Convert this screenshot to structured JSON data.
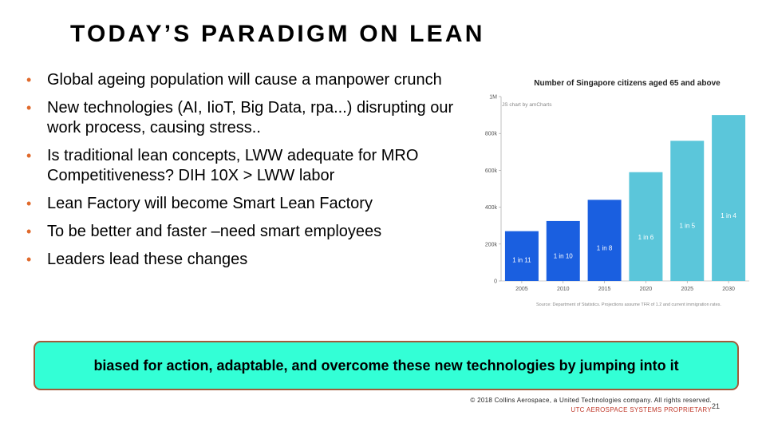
{
  "slide": {
    "title": "TODAY’S PARADIGM ON LEAN",
    "bullets": [
      "Global ageing population  will  cause a manpower crunch",
      "New technologies  (AI, IioT, Big Data, rpa...) disrupting  our work process, causing stress..",
      "Is traditional lean concepts, LWW adequate  for MRO Competitiveness?   DIH 10X > LWW labor",
      "Lean Factory will  become Smart Lean Factory",
      "To be better and faster –need smart employees",
      "Leaders lead these changes"
    ],
    "callout": "biased for action, adaptable, and overcome these new technologies by jumping into it",
    "copyright": "© 2018 Collins Aerospace, a United Technologies company. All rights reserved.",
    "proprietary": "UTC AEROSPACE SYSTEMS PROPRIETARY",
    "page_number": "21"
  },
  "chart_data": {
    "type": "bar",
    "title": "Number of Singapore citizens aged 65 and above",
    "watermark": "JS chart by amCharts",
    "source": "Source: Department of Statistics. Projections assume TFR of 1.2 and current immigration rates.",
    "categories": [
      "2005",
      "2010",
      "2015",
      "2020",
      "2025",
      "2030"
    ],
    "values": [
      270000,
      325000,
      440000,
      590000,
      760000,
      900000
    ],
    "labels": [
      "1 in 11",
      "1 in 10",
      "1 in 8",
      "1 in 6",
      "1 in 5",
      "1 in 4"
    ],
    "colors": [
      "#1a5fe0",
      "#1a5fe0",
      "#1a5fe0",
      "#5bc6da",
      "#5bc6da",
      "#5bc6da"
    ],
    "ylim": [
      0,
      1000000
    ],
    "yticks": [
      0,
      200000,
      400000,
      600000,
      800000,
      1000000
    ],
    "ytick_labels": [
      "0",
      "200k",
      "400k",
      "600k",
      "800k",
      "1M"
    ],
    "grid": false,
    "legend": "none"
  }
}
